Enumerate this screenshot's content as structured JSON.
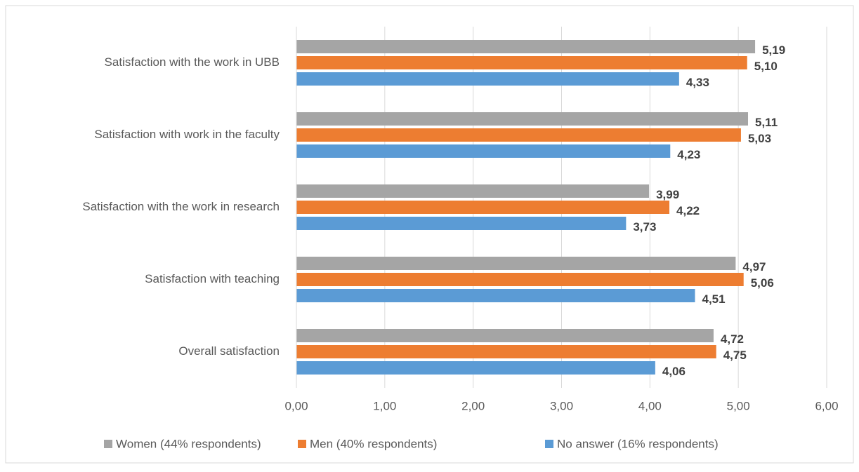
{
  "chart_data": {
    "type": "bar",
    "orientation": "horizontal",
    "categories": [
      "Satisfaction with the work in UBB",
      "Satisfaction with work in the faculty",
      "Satisfaction with the work in research",
      "Satisfaction with teaching",
      "Overall satisfaction"
    ],
    "series": [
      {
        "name": "Women (44% respondents)",
        "color": "#a5a5a5",
        "values": [
          5.19,
          5.11,
          3.99,
          4.97,
          4.72
        ],
        "value_labels": [
          "5,19",
          "5,11",
          "3,99",
          "4,97",
          "4,72"
        ]
      },
      {
        "name": "Men (40% respondents)",
        "color": "#ed7d31",
        "values": [
          5.1,
          5.03,
          4.22,
          5.06,
          4.75
        ],
        "value_labels": [
          "5,10",
          "5,03",
          "4,22",
          "5,06",
          "4,75"
        ]
      },
      {
        "name": "No answer (16% respondents)",
        "color": "#5b9bd5",
        "values": [
          4.33,
          4.23,
          3.73,
          4.51,
          4.06
        ],
        "value_labels": [
          "4,33",
          "4,23",
          "3,73",
          "4,51",
          "4,06"
        ]
      }
    ],
    "xlim": [
      0,
      6
    ],
    "xticks": [
      {
        "value": 0,
        "label": "0,00"
      },
      {
        "value": 1,
        "label": "1,00"
      },
      {
        "value": 2,
        "label": "2,00"
      },
      {
        "value": 3,
        "label": "3,00"
      },
      {
        "value": 4,
        "label": "4,00"
      },
      {
        "value": 5,
        "label": "5,00"
      },
      {
        "value": 6,
        "label": "6,00"
      }
    ],
    "grid": true,
    "legend": "bottom"
  }
}
